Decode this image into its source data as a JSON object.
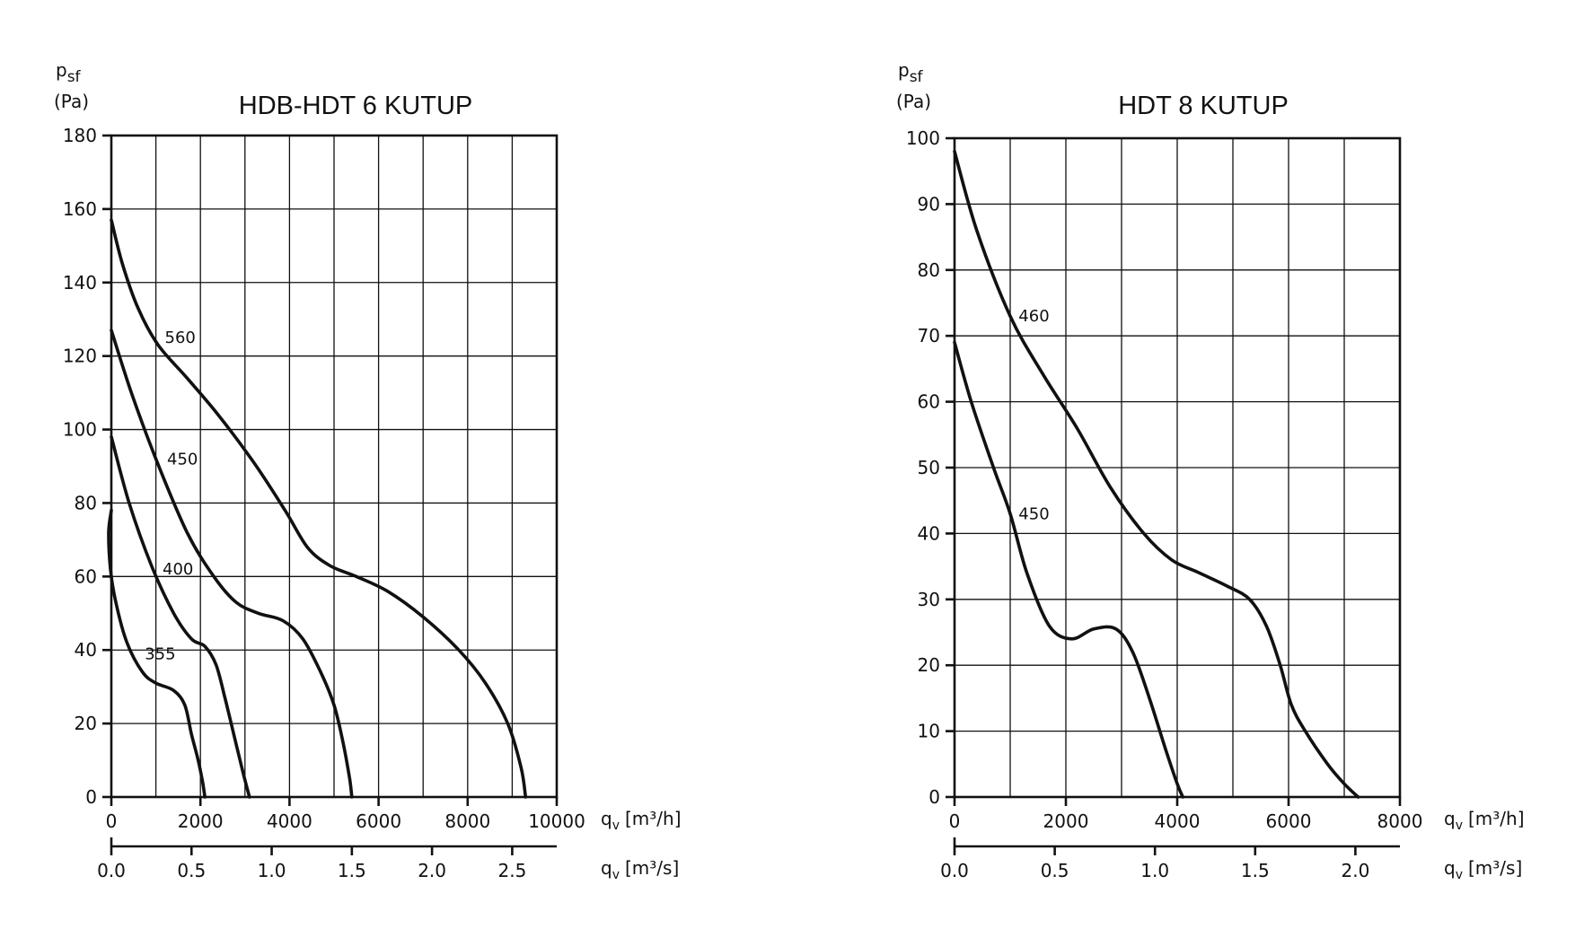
{
  "chart_data": [
    {
      "type": "line",
      "title": "HDB-HDT 6 KUTUP",
      "ylabel_main": "p",
      "ylabel_sub": "sf",
      "ylabel_unit": "(Pa)",
      "xlabel": "q",
      "xlabel_sub": "v",
      "xlabel_unit": "[m³/h]",
      "x2label": "q",
      "x2label_sub": "v",
      "x2label_unit": "[m³/s]",
      "xlim": [
        0,
        10000
      ],
      "ylim": [
        0,
        180
      ],
      "x_ticks": [
        "0",
        "2000",
        "4000",
        "6000",
        "8000",
        "10000"
      ],
      "y_ticks": [
        "0",
        "20",
        "40",
        "60",
        "80",
        "100",
        "120",
        "140",
        "160",
        "180"
      ],
      "x2_ticks": [
        "0.0",
        "0.5",
        "1.0",
        "1.5",
        "2.0",
        "2.5"
      ],
      "grid": true,
      "series": [
        {
          "name": "560",
          "x": [
            0,
            250,
            600,
            1050,
            1700,
            2400,
            3200,
            3900,
            4400,
            4900,
            5500,
            6200,
            7000,
            7800,
            8400,
            8900,
            9200,
            9300
          ],
          "y": [
            157,
            145,
            133,
            123,
            114,
            104,
            91,
            78,
            68,
            63,
            60,
            56,
            49,
            40,
            31,
            20,
            8,
            0
          ]
        },
        {
          "name": "450",
          "x": [
            0,
            450,
            1000,
            1700,
            2300,
            2800,
            3300,
            3850,
            4300,
            4700,
            5000,
            5200,
            5350,
            5400
          ],
          "y": [
            127,
            110,
            92,
            72,
            60,
            53,
            50,
            48,
            43,
            34,
            25,
            15,
            5,
            0
          ]
        },
        {
          "name": "400",
          "x": [
            0,
            400,
            900,
            1400,
            1800,
            2100,
            2350,
            2550,
            2750,
            2950,
            3100
          ],
          "y": [
            98,
            80,
            63,
            50,
            43,
            41,
            36,
            27,
            17,
            7,
            0
          ]
        },
        {
          "name": "355",
          "x": [
            0,
            -60,
            -20,
            100,
            350,
            700,
            1000,
            1400,
            1650,
            1800,
            1950,
            2050,
            2100
          ],
          "y": [
            78,
            72,
            62,
            53,
            42,
            34,
            31,
            29,
            25,
            17,
            10,
            4,
            0
          ]
        }
      ],
      "labels": [
        {
          "text": "560",
          "x": 1200,
          "y": 125
        },
        {
          "text": "450",
          "x": 1250,
          "y": 92
        },
        {
          "text": "400",
          "x": 1150,
          "y": 62
        },
        {
          "text": "355",
          "x": 750,
          "y": 39
        }
      ]
    },
    {
      "type": "line",
      "title": "HDT 8 KUTUP",
      "ylabel_main": "p",
      "ylabel_sub": "sf",
      "ylabel_unit": "(Pa)",
      "xlabel": "q",
      "xlabel_sub": "v",
      "xlabel_unit": "[m³/h]",
      "x2label": "q",
      "x2label_sub": "v",
      "x2label_unit": "[m³/s]",
      "xlim": [
        0,
        8000
      ],
      "ylim": [
        0,
        100
      ],
      "x_ticks": [
        "0",
        "2000",
        "4000",
        "6000",
        "8000"
      ],
      "y_ticks": [
        "0",
        "10",
        "20",
        "30",
        "40",
        "50",
        "60",
        "70",
        "80",
        "90",
        "100"
      ],
      "x2_ticks": [
        "0.0",
        "0.5",
        "1.0",
        "1.5",
        "2.0"
      ],
      "grid": true,
      "series": [
        {
          "name": "460",
          "x": [
            0,
            400,
            1000,
            1600,
            2200,
            2800,
            3400,
            3900,
            4400,
            4900,
            5300,
            5600,
            5850,
            6050,
            6300,
            6700,
            7000,
            7250
          ],
          "y": [
            98,
            86,
            73,
            64,
            56,
            47,
            40,
            36,
            34,
            32,
            30,
            26,
            20,
            14,
            10,
            5,
            2,
            0
          ]
        },
        {
          "name": "450",
          "x": [
            0,
            300,
            700,
            1000,
            1300,
            1700,
            2100,
            2500,
            2900,
            3200,
            3500,
            3800,
            4000,
            4100
          ],
          "y": [
            69,
            60,
            50,
            43,
            34,
            26,
            24,
            25.5,
            25.5,
            22,
            15,
            7,
            2,
            0
          ]
        }
      ],
      "labels": [
        {
          "text": "460",
          "x": 1150,
          "y": 73
        },
        {
          "text": "450",
          "x": 1150,
          "y": 43
        }
      ]
    }
  ]
}
